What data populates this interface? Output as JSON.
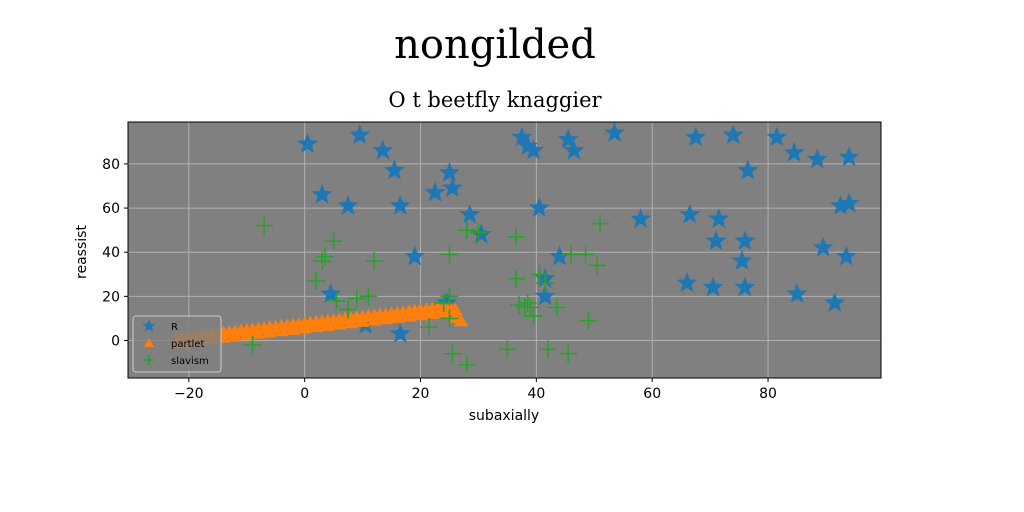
{
  "chart_data": {
    "type": "scatter",
    "title": "nongilded",
    "subtitle": "O t beetfly knaggier",
    "xlabel": "subaxially",
    "ylabel": "reassist",
    "xlim": [
      -30.5,
      99.5
    ],
    "ylim": [
      -17,
      99
    ],
    "xticks": [
      -20,
      0,
      20,
      40,
      60,
      80
    ],
    "yticks": [
      0,
      20,
      40,
      60,
      80
    ],
    "grid": true,
    "legend_position": "lower-left",
    "background": "#808080",
    "series": [
      {
        "name": "R",
        "marker": "star",
        "color": "#1f77b4",
        "points": [
          [
            0.5,
            89
          ],
          [
            3,
            66
          ],
          [
            4.5,
            21
          ],
          [
            7.5,
            61
          ],
          [
            9.5,
            93
          ],
          [
            13.5,
            86
          ],
          [
            15.5,
            77
          ],
          [
            16.5,
            61
          ],
          [
            16.5,
            3
          ],
          [
            19,
            38
          ],
          [
            22.5,
            67
          ],
          [
            25,
            76
          ],
          [
            25.5,
            69
          ],
          [
            28.5,
            57
          ],
          [
            30.5,
            48
          ],
          [
            37.5,
            92
          ],
          [
            38.5,
            88
          ],
          [
            39.5,
            86
          ],
          [
            40.5,
            60
          ],
          [
            41.5,
            28
          ],
          [
            41.5,
            20
          ],
          [
            44,
            38
          ],
          [
            45.5,
            91
          ],
          [
            46.5,
            86
          ],
          [
            53.5,
            94
          ],
          [
            58,
            55
          ],
          [
            66,
            26
          ],
          [
            66.5,
            57
          ],
          [
            67.5,
            92
          ],
          [
            70.5,
            24
          ],
          [
            71,
            45
          ],
          [
            71.5,
            55
          ],
          [
            74,
            93
          ],
          [
            75.5,
            36
          ],
          [
            76,
            45
          ],
          [
            76,
            24
          ],
          [
            76.5,
            77
          ],
          [
            81.5,
            92
          ],
          [
            84.5,
            85
          ],
          [
            85,
            21
          ],
          [
            88.5,
            82
          ],
          [
            89.5,
            42
          ],
          [
            91.5,
            17
          ],
          [
            92.5,
            61
          ],
          [
            93.5,
            38
          ],
          [
            94,
            62
          ],
          [
            94,
            83
          ],
          [
            10.5,
            7
          ],
          [
            24.5,
            17
          ]
        ]
      },
      {
        "name": "partlet",
        "marker": "triangle",
        "color": "#ff7f0e",
        "points": [
          [
            -22,
            1
          ],
          [
            -21,
            1.5
          ],
          [
            -20,
            1.8
          ],
          [
            -19,
            2
          ],
          [
            -18,
            2.4
          ],
          [
            -17,
            2.7
          ],
          [
            -16,
            3
          ],
          [
            -15,
            3.3
          ],
          [
            -14,
            3.6
          ],
          [
            -13,
            3.9
          ],
          [
            -12,
            4.2
          ],
          [
            -11,
            4.5
          ],
          [
            -10,
            4.8
          ],
          [
            -9,
            5.1
          ],
          [
            -8,
            5.4
          ],
          [
            -7,
            5.7
          ],
          [
            -6,
            6
          ],
          [
            -5,
            6.3
          ],
          [
            -4,
            6.6
          ],
          [
            -3,
            6.9
          ],
          [
            -2,
            7.2
          ],
          [
            -1,
            7.5
          ],
          [
            0,
            7.8
          ],
          [
            1,
            8.1
          ],
          [
            2,
            8.4
          ],
          [
            3,
            8.7
          ],
          [
            4,
            9
          ],
          [
            5,
            9.3
          ],
          [
            6,
            9.6
          ],
          [
            7,
            9.9
          ],
          [
            8,
            10.2
          ],
          [
            9,
            10.5
          ],
          [
            10,
            10.8
          ],
          [
            11,
            11.1
          ],
          [
            12,
            11.4
          ],
          [
            13,
            11.7
          ],
          [
            14,
            12
          ],
          [
            15,
            12.3
          ],
          [
            16,
            12.6
          ],
          [
            17,
            12.9
          ],
          [
            18,
            13.2
          ],
          [
            19,
            13.5
          ],
          [
            20,
            13.8
          ],
          [
            21,
            14.1
          ],
          [
            22,
            14.4
          ],
          [
            23,
            14.7
          ],
          [
            24,
            15
          ],
          [
            25,
            15.3
          ],
          [
            26,
            14
          ],
          [
            -22,
            -1
          ],
          [
            -21,
            -0.6
          ],
          [
            -20,
            -0.3
          ],
          [
            -18,
            0.3
          ],
          [
            -16,
            0.9
          ],
          [
            -14,
            1.5
          ],
          [
            -12,
            2.1
          ],
          [
            -10,
            2.7
          ],
          [
            -8,
            3.3
          ],
          [
            -6,
            3.9
          ],
          [
            -4,
            4.5
          ],
          [
            -2,
            5.1
          ],
          [
            0,
            5.7
          ],
          [
            2,
            6.3
          ],
          [
            4,
            6.9
          ],
          [
            6,
            7.5
          ],
          [
            8,
            8.1
          ],
          [
            10,
            8.7
          ],
          [
            12,
            9.3
          ],
          [
            14,
            9.9
          ],
          [
            16,
            10.5
          ],
          [
            18,
            11.1
          ],
          [
            20,
            11.7
          ],
          [
            22,
            12.3
          ],
          [
            24,
            12.9
          ],
          [
            26,
            10.5
          ],
          [
            27,
            9
          ]
        ]
      },
      {
        "name": "slavism",
        "marker": "plus",
        "color": "#2ca02c",
        "points": [
          [
            -7,
            52
          ],
          [
            -9,
            -2
          ],
          [
            2,
            27
          ],
          [
            3,
            36
          ],
          [
            3.5,
            38
          ],
          [
            5,
            45
          ],
          [
            5.5,
            18
          ],
          [
            7.5,
            14
          ],
          [
            9,
            19
          ],
          [
            11,
            20
          ],
          [
            12,
            36
          ],
          [
            21.5,
            6
          ],
          [
            24,
            17
          ],
          [
            25,
            39
          ],
          [
            25,
            20
          ],
          [
            25,
            10
          ],
          [
            25.5,
            -6
          ],
          [
            28,
            -11
          ],
          [
            28,
            50
          ],
          [
            30,
            49
          ],
          [
            35,
            -4
          ],
          [
            36.5,
            28
          ],
          [
            36.5,
            47
          ],
          [
            37,
            16
          ],
          [
            38,
            15
          ],
          [
            38.5,
            17
          ],
          [
            39,
            15
          ],
          [
            39.5,
            11
          ],
          [
            40.5,
            30
          ],
          [
            41.5,
            26
          ],
          [
            42,
            -4
          ],
          [
            43.5,
            15
          ],
          [
            45.5,
            -6
          ],
          [
            46,
            39
          ],
          [
            48.5,
            39
          ],
          [
            49,
            9
          ],
          [
            50.5,
            34
          ],
          [
            51,
            53
          ]
        ]
      }
    ]
  }
}
